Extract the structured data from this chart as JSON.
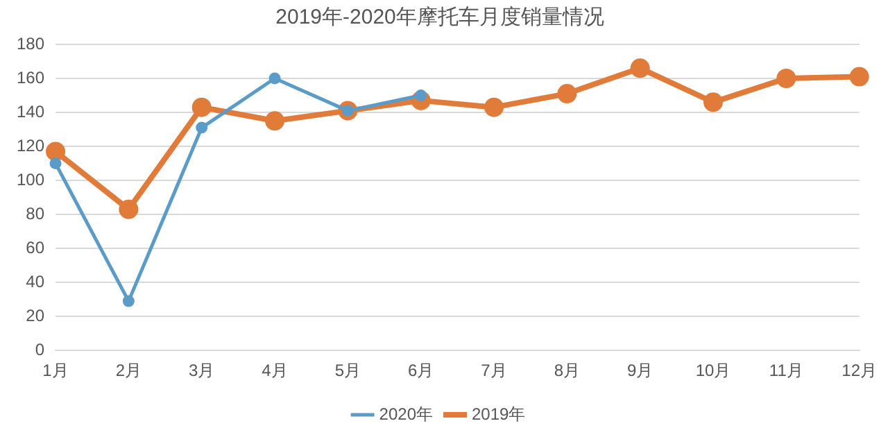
{
  "chart_data": {
    "type": "line",
    "title": "2019年-2020年摩托车月度销量情况",
    "categories": [
      "1月",
      "2月",
      "3月",
      "4月",
      "5月",
      "6月",
      "7月",
      "8月",
      "9月",
      "10月",
      "11月",
      "12月"
    ],
    "series": [
      {
        "name": "2020年",
        "color": "#5b9bc7",
        "values": [
          110,
          29,
          131,
          160,
          141,
          150,
          null,
          null,
          null,
          null,
          null,
          null
        ]
      },
      {
        "name": "2019年",
        "color": "#e07b39",
        "values": [
          117,
          83,
          143,
          135,
          141,
          147,
          143,
          151,
          166,
          146,
          160,
          161
        ]
      }
    ],
    "ylim": [
      0,
      180
    ],
    "yticks": [
      0,
      20,
      40,
      60,
      80,
      100,
      120,
      140,
      160,
      180
    ],
    "grid": "y",
    "legend": "bottom",
    "marker": "circle",
    "line_style": "solid"
  }
}
